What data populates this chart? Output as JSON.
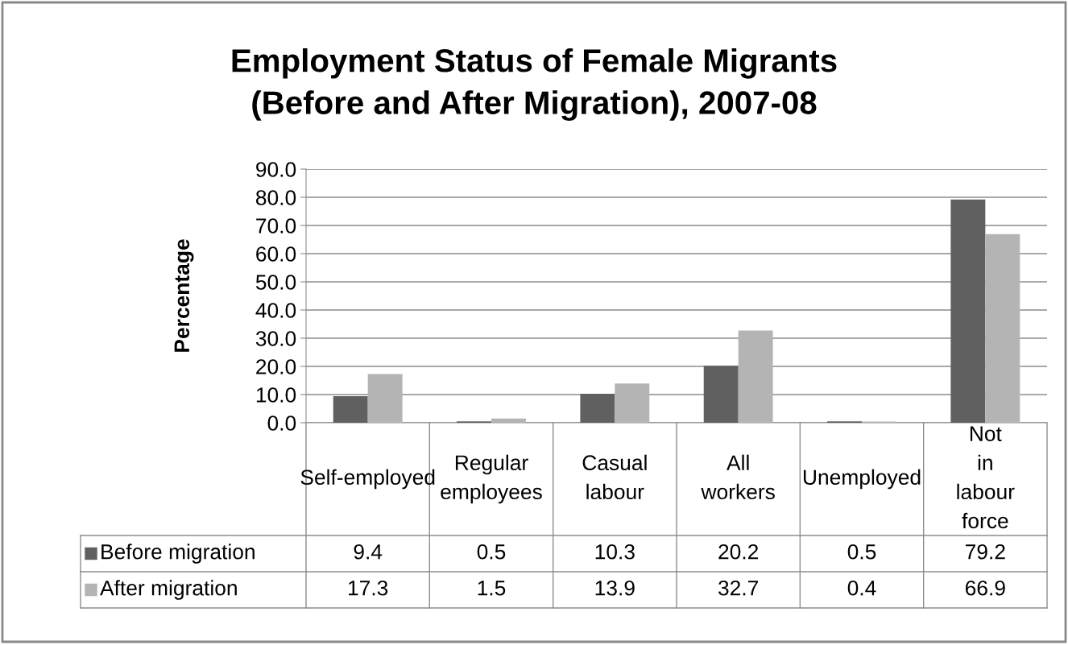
{
  "chart_data": {
    "type": "bar",
    "title": "Employment Status of Female Migrants\n(Before and After Migration), 2007-08",
    "ylabel": "Percentage",
    "categories": [
      "Self-employed",
      "Regular employees",
      "Casual labour",
      "All workers",
      "Unemployed",
      "Not in labour force"
    ],
    "series": [
      {
        "name": "Before migration",
        "color": "#606060",
        "values": [
          9.4,
          0.5,
          10.3,
          20.2,
          0.5,
          79.2
        ]
      },
      {
        "name": "After migration",
        "color": "#b4b4b4",
        "values": [
          17.3,
          1.5,
          13.9,
          32.7,
          0.4,
          66.9
        ]
      }
    ],
    "ylim": [
      0,
      90
    ],
    "yticks": [
      {
        "value": 0,
        "label": "0.0"
      },
      {
        "value": 10,
        "label": "10.0"
      },
      {
        "value": 20,
        "label": "20.0"
      },
      {
        "value": 30,
        "label": "30.0"
      },
      {
        "value": 40,
        "label": "40.0"
      },
      {
        "value": 50,
        "label": "50.0"
      },
      {
        "value": 60,
        "label": "60.0"
      },
      {
        "value": 70,
        "label": "70.0"
      },
      {
        "value": 80,
        "label": "80.0"
      },
      {
        "value": 90,
        "label": "90.0"
      }
    ],
    "grid": "y",
    "legend": "bottom",
    "data_labels": true
  }
}
